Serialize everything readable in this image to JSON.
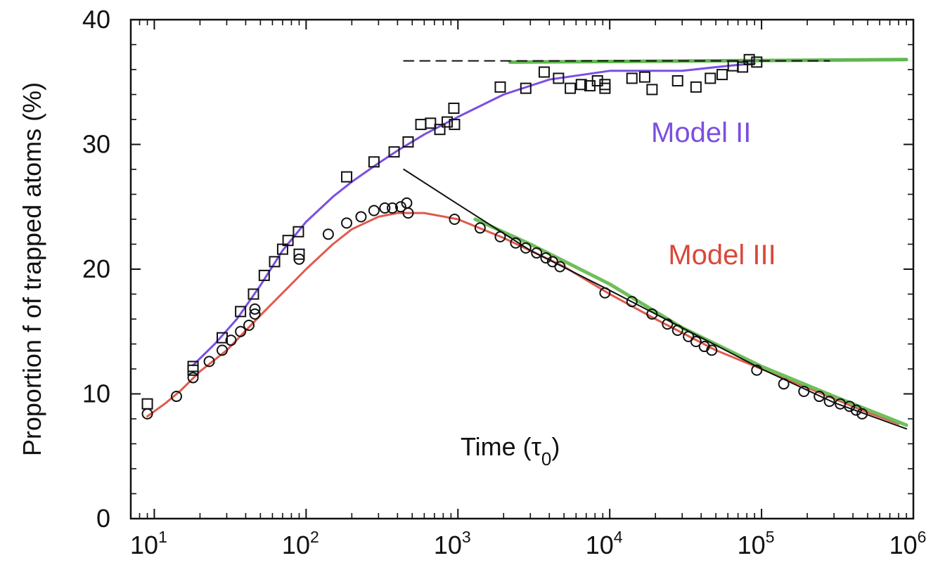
{
  "chart_data": {
    "type": "scatter",
    "xscale": "log",
    "xlim": [
      7,
      1000000
    ],
    "ylim": [
      0,
      40
    ],
    "x_ticks": [
      {
        "base": "10",
        "exp": "1",
        "value": 10
      },
      {
        "base": "10",
        "exp": "2",
        "value": 100
      },
      {
        "base": "10",
        "exp": "3",
        "value": 1000
      },
      {
        "base": "10",
        "exp": "4",
        "value": 10000
      },
      {
        "base": "10",
        "exp": "5",
        "value": 100000
      },
      {
        "base": "10",
        "exp": "6",
        "value": 1000000
      }
    ],
    "y_ticks": [
      "0",
      "10",
      "20",
      "30",
      "40"
    ],
    "ylabel": "Proportion f of trapped atoms (%)",
    "xlabel_text": "Time (τ",
    "xlabel_sub": "0",
    "xlabel_close": ")",
    "grid": false,
    "annotations": [
      {
        "text": "Model II",
        "color": "#7b4fe0",
        "x": 40000,
        "y": 30.2
      },
      {
        "text": "Model III",
        "color": "#d9483b",
        "x": 55000,
        "y": 20.4
      }
    ],
    "series": [
      {
        "marker": "square",
        "color": "#111111",
        "points": [
          [
            9,
            9.2
          ],
          [
            18,
            11.9
          ],
          [
            18,
            12.2
          ],
          [
            28,
            14.5
          ],
          [
            37,
            16.6
          ],
          [
            45,
            18.0
          ],
          [
            53,
            19.5
          ],
          [
            62,
            20.6
          ],
          [
            70,
            21.6
          ],
          [
            76,
            22.3
          ],
          [
            89,
            23.0
          ],
          [
            90,
            21.2
          ],
          [
            185,
            27.4
          ],
          [
            280,
            28.6
          ],
          [
            380,
            29.4
          ],
          [
            470,
            30.2
          ],
          [
            570,
            31.6
          ],
          [
            660,
            31.7
          ],
          [
            760,
            31.2
          ],
          [
            850,
            31.8
          ],
          [
            940,
            32.9
          ],
          [
            950,
            31.6
          ],
          [
            1900,
            34.6
          ],
          [
            2800,
            34.5
          ],
          [
            3700,
            35.8
          ],
          [
            4600,
            35.3
          ],
          [
            5500,
            34.5
          ],
          [
            6500,
            34.8
          ],
          [
            7400,
            34.7
          ],
          [
            8300,
            35.1
          ],
          [
            9300,
            34.5
          ],
          [
            9300,
            34.8
          ],
          [
            14000,
            35.3
          ],
          [
            17000,
            35.4
          ],
          [
            19000,
            34.4
          ],
          [
            28000,
            35.1
          ],
          [
            37000,
            34.6
          ],
          [
            46000,
            35.3
          ],
          [
            55000,
            35.6
          ],
          [
            65000,
            36.3
          ],
          [
            75000,
            36.2
          ],
          [
            83000,
            36.8
          ],
          [
            93000,
            36.6
          ]
        ]
      },
      {
        "marker": "circle",
        "color": "#111111",
        "points": [
          [
            9,
            8.4
          ],
          [
            14,
            9.8
          ],
          [
            18,
            11.3
          ],
          [
            23,
            12.6
          ],
          [
            28,
            13.5
          ],
          [
            32,
            14.3
          ],
          [
            37,
            15.0
          ],
          [
            42,
            15.5
          ],
          [
            46,
            16.4
          ],
          [
            46,
            16.8
          ],
          [
            90,
            20.8
          ],
          [
            140,
            22.8
          ],
          [
            185,
            23.7
          ],
          [
            230,
            24.2
          ],
          [
            280,
            24.7
          ],
          [
            330,
            24.9
          ],
          [
            370,
            24.9
          ],
          [
            420,
            25.0
          ],
          [
            460,
            25.3
          ],
          [
            470,
            24.5
          ],
          [
            950,
            24.0
          ],
          [
            1400,
            23.3
          ],
          [
            1900,
            22.6
          ],
          [
            2400,
            22.1
          ],
          [
            2800,
            21.7
          ],
          [
            3300,
            21.3
          ],
          [
            3800,
            20.9
          ],
          [
            4200,
            20.6
          ],
          [
            4700,
            20.2
          ],
          [
            9300,
            18.1
          ],
          [
            14000,
            17.4
          ],
          [
            19000,
            16.4
          ],
          [
            24000,
            15.6
          ],
          [
            28000,
            15.1
          ],
          [
            33000,
            14.6
          ],
          [
            37000,
            14.2
          ],
          [
            42000,
            13.8
          ],
          [
            47000,
            13.5
          ],
          [
            93000,
            11.9
          ],
          [
            140000,
            10.8
          ],
          [
            190000,
            10.2
          ],
          [
            240000,
            9.8
          ],
          [
            280000,
            9.4
          ],
          [
            330000,
            9.2
          ],
          [
            380000,
            9.0
          ],
          [
            420000,
            8.7
          ],
          [
            460000,
            8.4
          ]
        ]
      },
      {
        "kind": "line",
        "color": "#7b4fe0",
        "points": [
          [
            18,
            12.3
          ],
          [
            25,
            14.0
          ],
          [
            35,
            16.0
          ],
          [
            50,
            18.7
          ],
          [
            70,
            21.5
          ],
          [
            100,
            23.8
          ],
          [
            150,
            25.8
          ],
          [
            200,
            27.0
          ],
          [
            300,
            28.5
          ],
          [
            400,
            29.5
          ],
          [
            600,
            30.8
          ],
          [
            1000,
            32.2
          ],
          [
            2000,
            34.0
          ],
          [
            4000,
            35.2
          ],
          [
            10000,
            35.9
          ],
          [
            30000,
            35.9
          ],
          [
            60000,
            36.3
          ],
          [
            90000,
            36.5
          ]
        ]
      },
      {
        "kind": "line",
        "color": "#e05a4c",
        "points": [
          [
            9,
            8.2
          ],
          [
            12,
            9.3
          ],
          [
            15,
            10.3
          ],
          [
            20,
            11.8
          ],
          [
            30,
            13.5
          ],
          [
            50,
            16.3
          ],
          [
            80,
            18.8
          ],
          [
            100,
            20.0
          ],
          [
            150,
            22.0
          ],
          [
            200,
            23.2
          ],
          [
            300,
            24.2
          ],
          [
            400,
            24.5
          ],
          [
            600,
            24.5
          ],
          [
            1000,
            24.0
          ],
          [
            2000,
            22.5
          ],
          [
            5000,
            20.2
          ],
          [
            10000,
            18.0
          ],
          [
            20000,
            16.0
          ],
          [
            50000,
            13.5
          ],
          [
            100000,
            12.0
          ],
          [
            200000,
            10.5
          ],
          [
            500000,
            8.5
          ],
          [
            800000,
            7.6
          ]
        ]
      },
      {
        "kind": "line",
        "color": "#6fbf5a",
        "width": 5,
        "points": [
          [
            1300,
            24.0
          ],
          [
            3000,
            22.0
          ],
          [
            10000,
            18.8
          ],
          [
            30000,
            15.3
          ],
          [
            100000,
            12.2
          ],
          [
            300000,
            9.8
          ],
          [
            900000,
            7.5
          ]
        ]
      },
      {
        "kind": "line",
        "color": "#111111",
        "width": 2,
        "points": [
          [
            440,
            28.0
          ],
          [
            1000,
            25.2
          ],
          [
            3000,
            21.5
          ],
          [
            10000,
            18.3
          ],
          [
            30000,
            15.3
          ],
          [
            100000,
            12.0
          ],
          [
            300000,
            9.3
          ],
          [
            900000,
            7.2
          ]
        ]
      },
      {
        "kind": "line",
        "color": "#5fb84e",
        "width": 5,
        "points": [
          [
            2200,
            36.6
          ],
          [
            900000,
            36.8
          ]
        ]
      },
      {
        "kind": "line",
        "color": "#111111",
        "width": 2,
        "dash": "14,9",
        "points": [
          [
            440,
            36.7
          ],
          [
            280000,
            36.7
          ]
        ]
      }
    ]
  }
}
